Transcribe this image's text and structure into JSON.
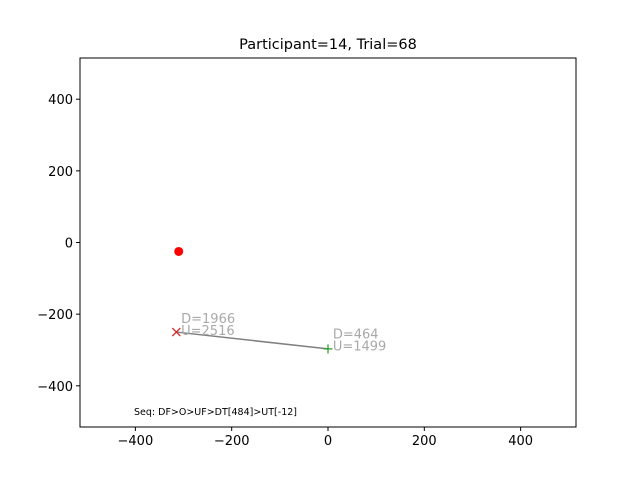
{
  "chart_data": {
    "type": "scatter",
    "title": "Participant=14, Trial=68",
    "xlabel": "",
    "ylabel": "",
    "xlim": [
      -515,
      515
    ],
    "ylim": [
      -515,
      515
    ],
    "x_ticks": [
      -400,
      -200,
      0,
      200,
      400
    ],
    "y_ticks": [
      -400,
      -200,
      0,
      200,
      400
    ],
    "x_tick_labels": [
      "−400",
      "−200",
      "0",
      "200",
      "400"
    ],
    "y_tick_labels": [
      "−400",
      "−200",
      "0",
      "200",
      "400"
    ],
    "grid": false,
    "target_point": {
      "x": -310,
      "y": -25,
      "color": "#ff0000"
    },
    "path": {
      "color": "#808080",
      "points": [
        {
          "x": -315,
          "y": -250
        },
        {
          "x": 0,
          "y": -297
        }
      ]
    },
    "start_marker": {
      "x": 0,
      "y": -297,
      "symbol": "+",
      "color": "#2ca02c"
    },
    "end_marker": {
      "x": -315,
      "y": -250,
      "symbol": "x",
      "color": "#d62728"
    },
    "annotations": [
      {
        "text": "D=1966",
        "x": -305,
        "y": -225
      },
      {
        "text": "U=2516",
        "x": -305,
        "y": -258
      },
      {
        "text": "D=464",
        "x": 10,
        "y": -268
      },
      {
        "text": "U=1499",
        "x": 10,
        "y": -302
      }
    ],
    "annotation_color": "#a9a9a9",
    "footer_text": "Seq: DF>O>UF>DT[484]>UT[-12]"
  }
}
